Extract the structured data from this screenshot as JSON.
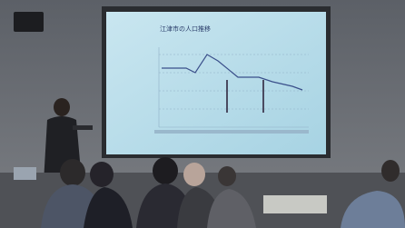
{
  "slide": {
    "title": "江津市の人口推移"
  }
}
